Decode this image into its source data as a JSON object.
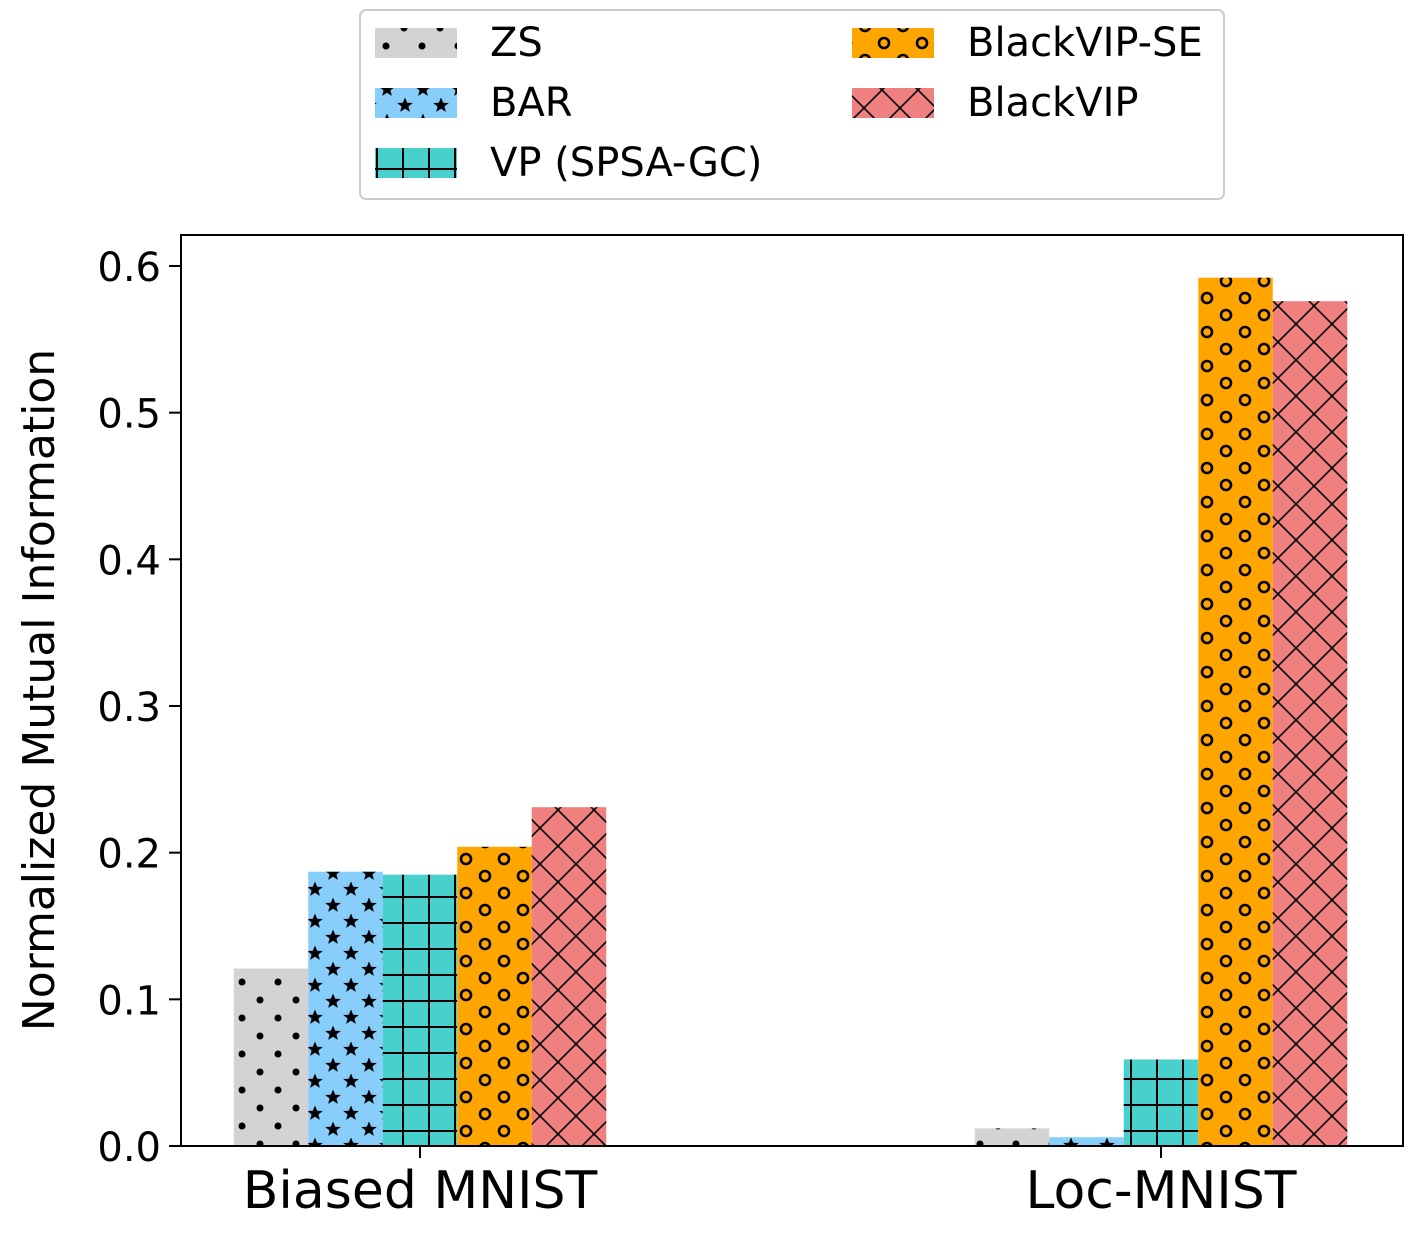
{
  "chart_data": {
    "type": "bar",
    "title": "",
    "xlabel": "",
    "ylabel": "Normalized Mutual Information",
    "ylim": [
      0,
      0.62
    ],
    "yticks": [
      0.0,
      0.1,
      0.2,
      0.3,
      0.4,
      0.5,
      0.6
    ],
    "ytick_labels": [
      "0.0",
      "0.1",
      "0.2",
      "0.3",
      "0.4",
      "0.5",
      "0.6"
    ],
    "grid": false,
    "legend_position": "top-center, above plot",
    "categories": [
      "Biased MNIST",
      "Loc-MNIST"
    ],
    "series": [
      {
        "name": "ZS",
        "color": "#d3d3d3",
        "pattern": "dots",
        "values": [
          0.121,
          0.012
        ]
      },
      {
        "name": "BAR",
        "color": "#87cefa",
        "pattern": "stars",
        "values": [
          0.187,
          0.006
        ]
      },
      {
        "name": "VP (SPSA-GC)",
        "color": "#48d1cc",
        "pattern": "grid",
        "values": [
          0.185,
          0.059
        ]
      },
      {
        "name": "BlackVIP-SE",
        "color": "#ffa500",
        "pattern": "circles",
        "values": [
          0.204,
          0.592
        ]
      },
      {
        "name": "BlackVIP",
        "color": "#f08080",
        "pattern": "crosshatch",
        "values": [
          0.231,
          0.576
        ]
      }
    ]
  }
}
